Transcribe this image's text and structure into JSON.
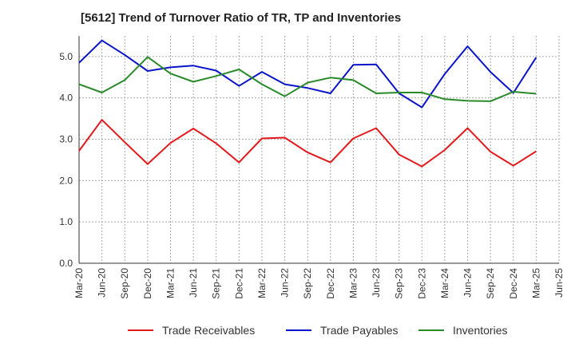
{
  "chart_data": {
    "type": "line",
    "title": "[5612]  Trend of Turnover Ratio of TR, TP and Inventories",
    "xlabel": "",
    "ylabel": "",
    "ylim": [
      0,
      5.5
    ],
    "yticks": [
      "0.0",
      "1.0",
      "2.0",
      "3.0",
      "4.0",
      "5.0"
    ],
    "categories": [
      "Mar-20",
      "Jun-20",
      "Sep-20",
      "Dec-20",
      "Mar-21",
      "Jun-21",
      "Sep-21",
      "Dec-21",
      "Mar-22",
      "Jun-22",
      "Sep-22",
      "Dec-22",
      "Mar-23",
      "Jun-23",
      "Sep-23",
      "Dec-23",
      "Mar-24",
      "Jun-24",
      "Sep-24",
      "Dec-24",
      "Mar-25",
      "Jun-25"
    ],
    "grid": true,
    "legend_position": "bottom",
    "series": [
      {
        "name": "Trade Receivables",
        "color": "#e31a1c",
        "values": [
          2.72,
          3.47,
          2.93,
          2.4,
          2.91,
          3.26,
          2.9,
          2.44,
          3.02,
          3.04,
          2.68,
          2.44,
          3.02,
          3.27,
          2.63,
          2.34,
          2.74,
          3.27,
          2.7,
          2.36,
          2.71,
          null
        ]
      },
      {
        "name": "Trade Payables",
        "color": "#0a14c8",
        "values": [
          4.85,
          5.39,
          5.04,
          4.65,
          4.74,
          4.78,
          4.66,
          4.29,
          4.63,
          4.33,
          4.24,
          4.11,
          4.8,
          4.81,
          4.11,
          3.77,
          4.58,
          5.25,
          4.63,
          4.12,
          4.98,
          null
        ]
      },
      {
        "name": "Inventories",
        "color": "#2a8a2a",
        "values": [
          4.33,
          4.13,
          4.43,
          4.99,
          4.59,
          4.39,
          4.53,
          4.69,
          4.33,
          4.04,
          4.37,
          4.49,
          4.43,
          4.11,
          4.13,
          4.13,
          3.97,
          3.93,
          3.92,
          4.15,
          4.1,
          null
        ]
      }
    ]
  }
}
